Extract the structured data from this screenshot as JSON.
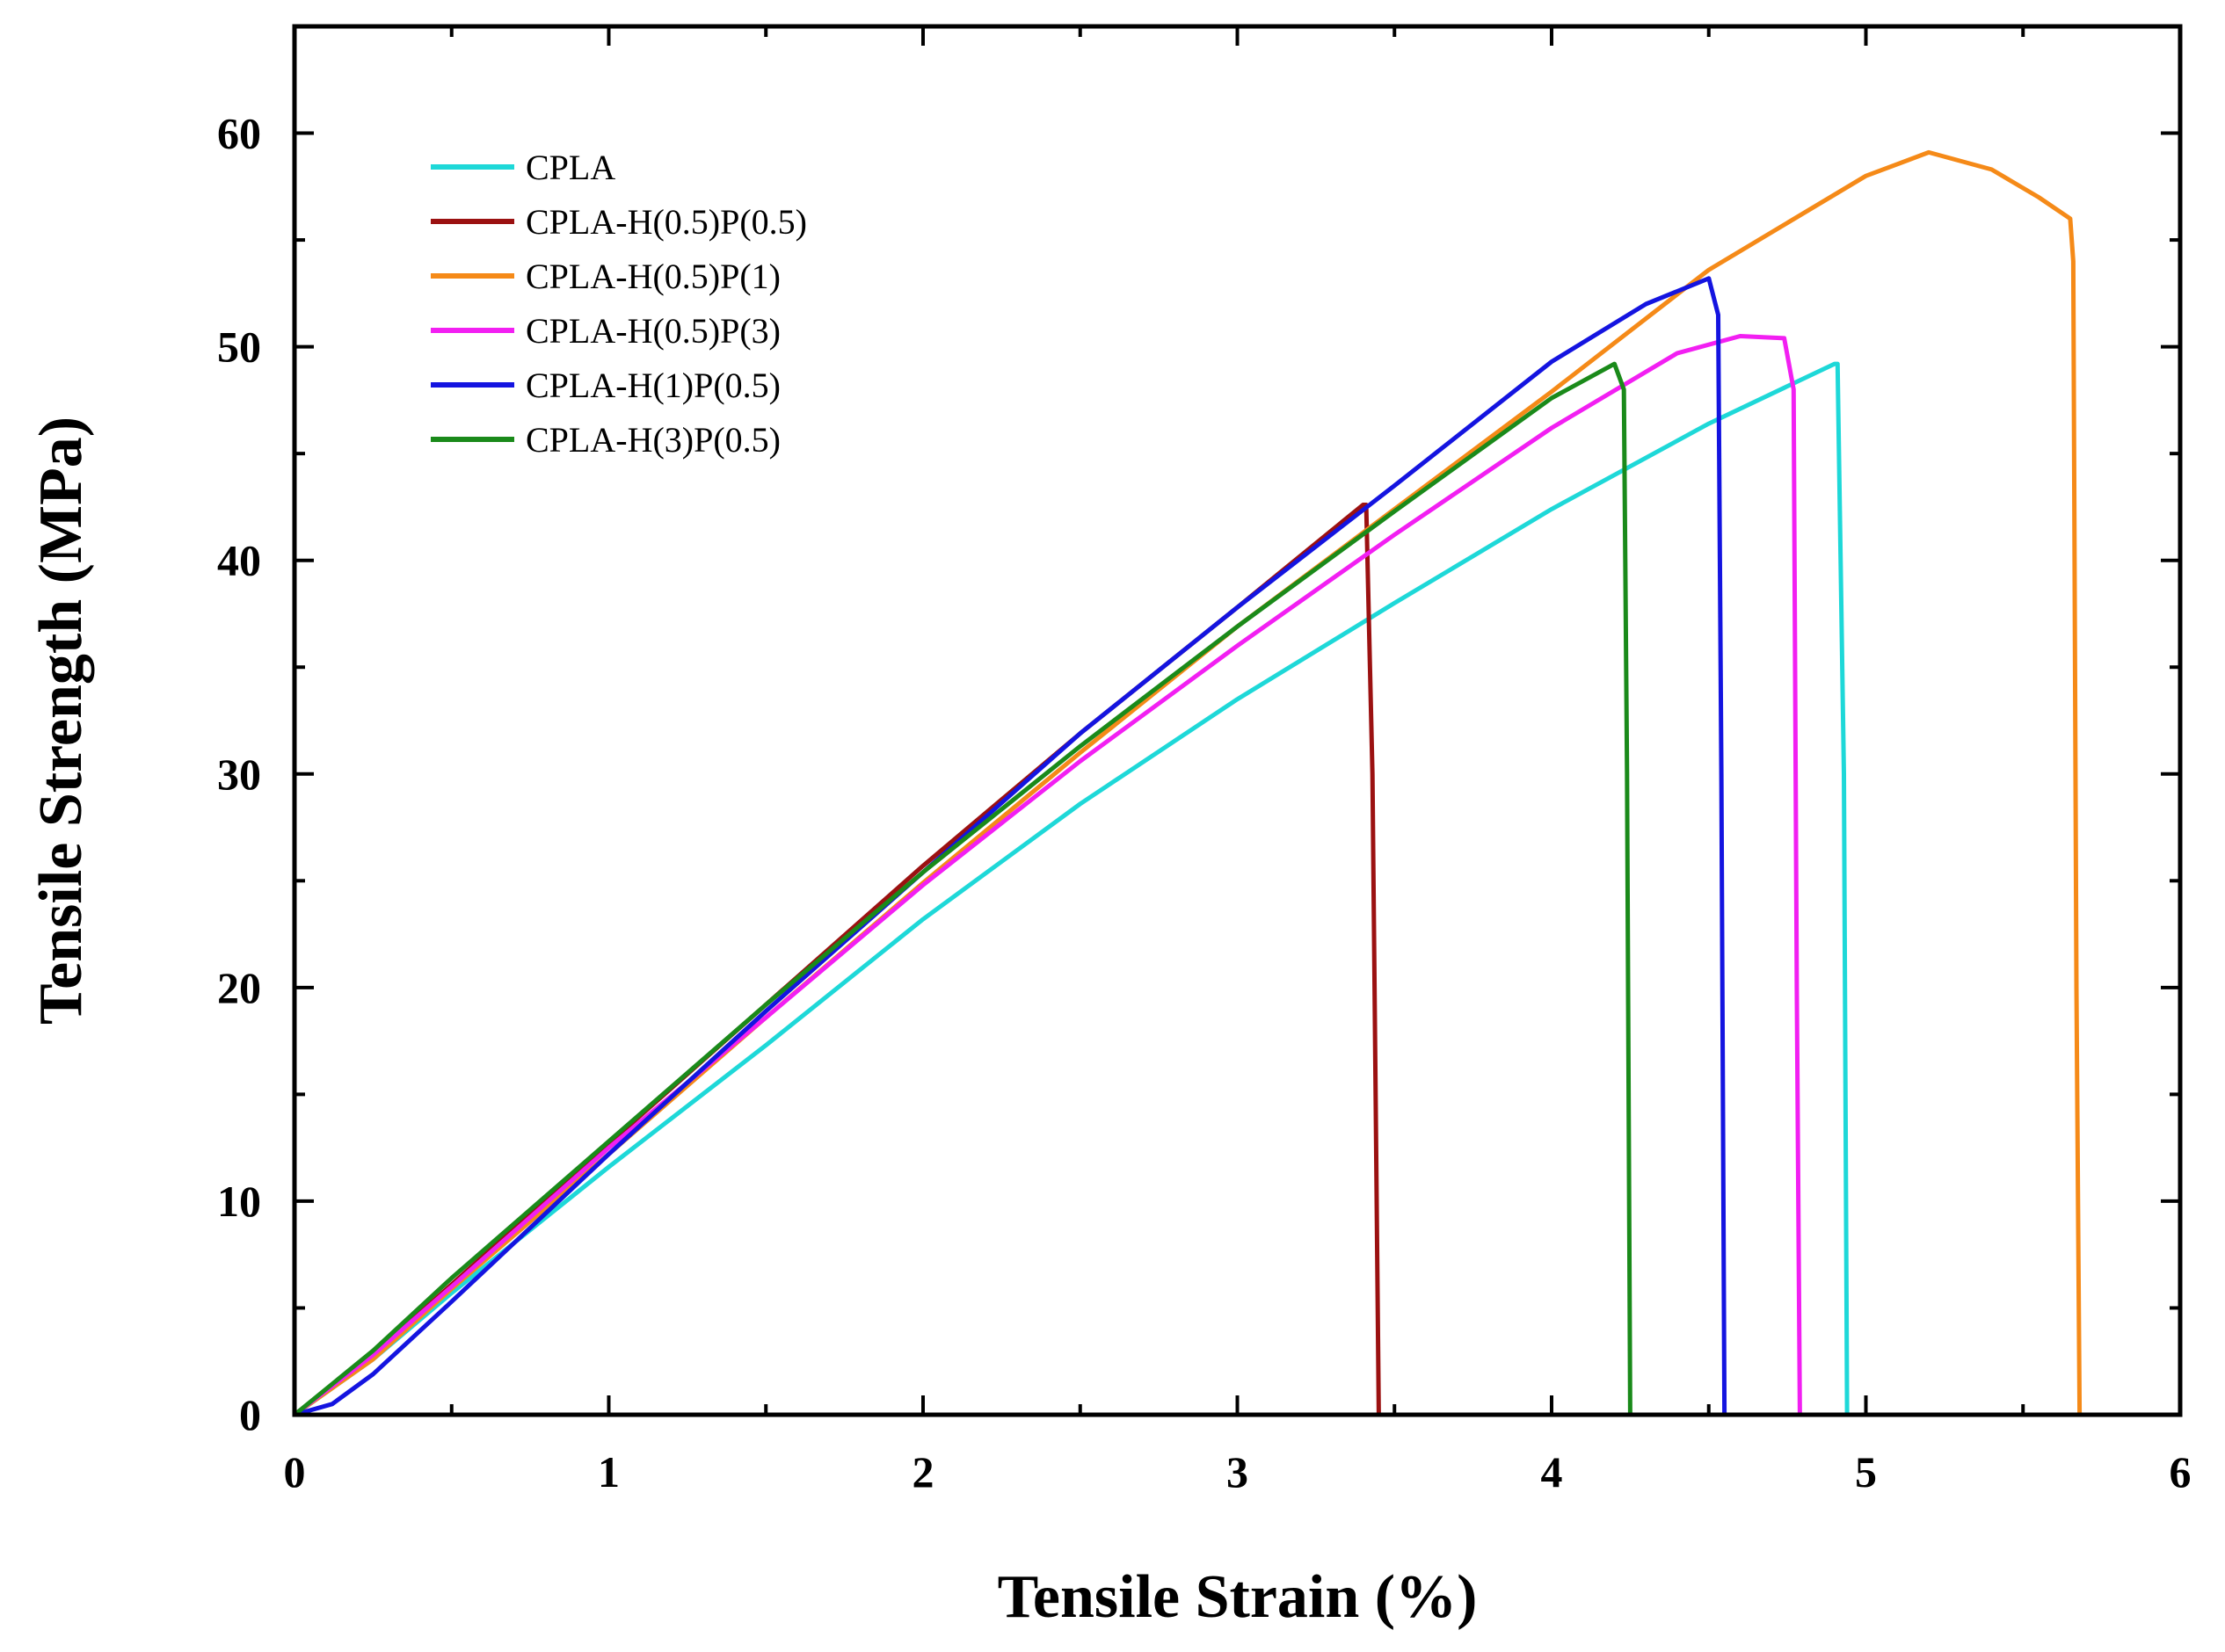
{
  "chart_data": {
    "type": "line",
    "title": "",
    "xlabel": "Tensile Strain (%)",
    "ylabel": "Tensile Strength (MPa)",
    "xlim": [
      0,
      6
    ],
    "ylim": [
      0,
      65
    ],
    "xticks": [
      0,
      1,
      2,
      3,
      4,
      5,
      6
    ],
    "yticks": [
      0,
      10,
      20,
      30,
      40,
      50,
      60
    ],
    "grid": false,
    "legend_position": "top-left",
    "series": [
      {
        "name": "CPLA",
        "color": "#1ed8d8",
        "points": [
          [
            0,
            0
          ],
          [
            0.25,
            2.6
          ],
          [
            0.5,
            5.7
          ],
          [
            1,
            11.6
          ],
          [
            1.5,
            17.3
          ],
          [
            2,
            23.2
          ],
          [
            2.5,
            28.6
          ],
          [
            3,
            33.5
          ],
          [
            3.5,
            38
          ],
          [
            4,
            42.4
          ],
          [
            4.5,
            46.4
          ],
          [
            4.9,
            49.2
          ],
          [
            4.91,
            49.2
          ],
          [
            4.93,
            30
          ],
          [
            4.94,
            0
          ]
        ]
      },
      {
        "name": "CPLA-H(0.5)P(0.5)",
        "color": "#9b1111",
        "points": [
          [
            0,
            0
          ],
          [
            0.25,
            2.8
          ],
          [
            0.5,
            6.1
          ],
          [
            1,
            12.7
          ],
          [
            1.5,
            19.2
          ],
          [
            2,
            25.7
          ],
          [
            2.5,
            31.9
          ],
          [
            3,
            37.8
          ],
          [
            3.4,
            42.6
          ],
          [
            3.41,
            42.6
          ],
          [
            3.43,
            30
          ],
          [
            3.45,
            0
          ]
        ]
      },
      {
        "name": "CPLA-H(0.5)P(1)",
        "color": "#f58a18",
        "points": [
          [
            0,
            0
          ],
          [
            0.25,
            2.6
          ],
          [
            0.5,
            5.9
          ],
          [
            1,
            12.2
          ],
          [
            1.5,
            18.6
          ],
          [
            2,
            24.9
          ],
          [
            2.5,
            31
          ],
          [
            3,
            36.9
          ],
          [
            3.5,
            42.4
          ],
          [
            4,
            47.9
          ],
          [
            4.5,
            53.6
          ],
          [
            5,
            58
          ],
          [
            5.2,
            59.1
          ],
          [
            5.4,
            58.3
          ],
          [
            5.55,
            57
          ],
          [
            5.65,
            56
          ],
          [
            5.66,
            54
          ],
          [
            5.67,
            20
          ],
          [
            5.68,
            0
          ]
        ]
      },
      {
        "name": "CPLA-H(0.5)P(3)",
        "color": "#f21ff2",
        "points": [
          [
            0,
            0
          ],
          [
            0.25,
            2.8
          ],
          [
            0.5,
            6
          ],
          [
            1,
            12.5
          ],
          [
            1.5,
            18.6
          ],
          [
            2,
            24.8
          ],
          [
            2.5,
            30.6
          ],
          [
            3,
            36
          ],
          [
            3.5,
            41.2
          ],
          [
            4,
            46.2
          ],
          [
            4.4,
            49.7
          ],
          [
            4.6,
            50.5
          ],
          [
            4.74,
            50.4
          ],
          [
            4.77,
            48
          ],
          [
            4.78,
            20
          ],
          [
            4.79,
            0
          ]
        ]
      },
      {
        "name": "CPLA-H(1)P(0.5)",
        "color": "#1414e0",
        "points": [
          [
            0,
            0
          ],
          [
            0.12,
            0.5
          ],
          [
            0.25,
            1.9
          ],
          [
            0.5,
            5.3
          ],
          [
            1,
            12.2
          ],
          [
            1.5,
            18.9
          ],
          [
            2,
            25.4
          ],
          [
            2.5,
            31.9
          ],
          [
            3,
            37.8
          ],
          [
            3.5,
            43.5
          ],
          [
            4,
            49.3
          ],
          [
            4.3,
            52
          ],
          [
            4.5,
            53.2
          ],
          [
            4.53,
            51.5
          ],
          [
            4.54,
            30
          ],
          [
            4.55,
            0
          ]
        ]
      },
      {
        "name": "CPLA-H(3)P(0.5)",
        "color": "#1a8a1a",
        "points": [
          [
            0,
            0
          ],
          [
            0.25,
            3
          ],
          [
            0.5,
            6.4
          ],
          [
            1,
            12.8
          ],
          [
            1.5,
            19.2
          ],
          [
            2,
            25.4
          ],
          [
            2.5,
            31.3
          ],
          [
            3,
            36.9
          ],
          [
            3.5,
            42.3
          ],
          [
            4,
            47.6
          ],
          [
            4.2,
            49.2
          ],
          [
            4.23,
            48
          ],
          [
            4.24,
            30
          ],
          [
            4.25,
            0
          ]
        ]
      }
    ]
  }
}
